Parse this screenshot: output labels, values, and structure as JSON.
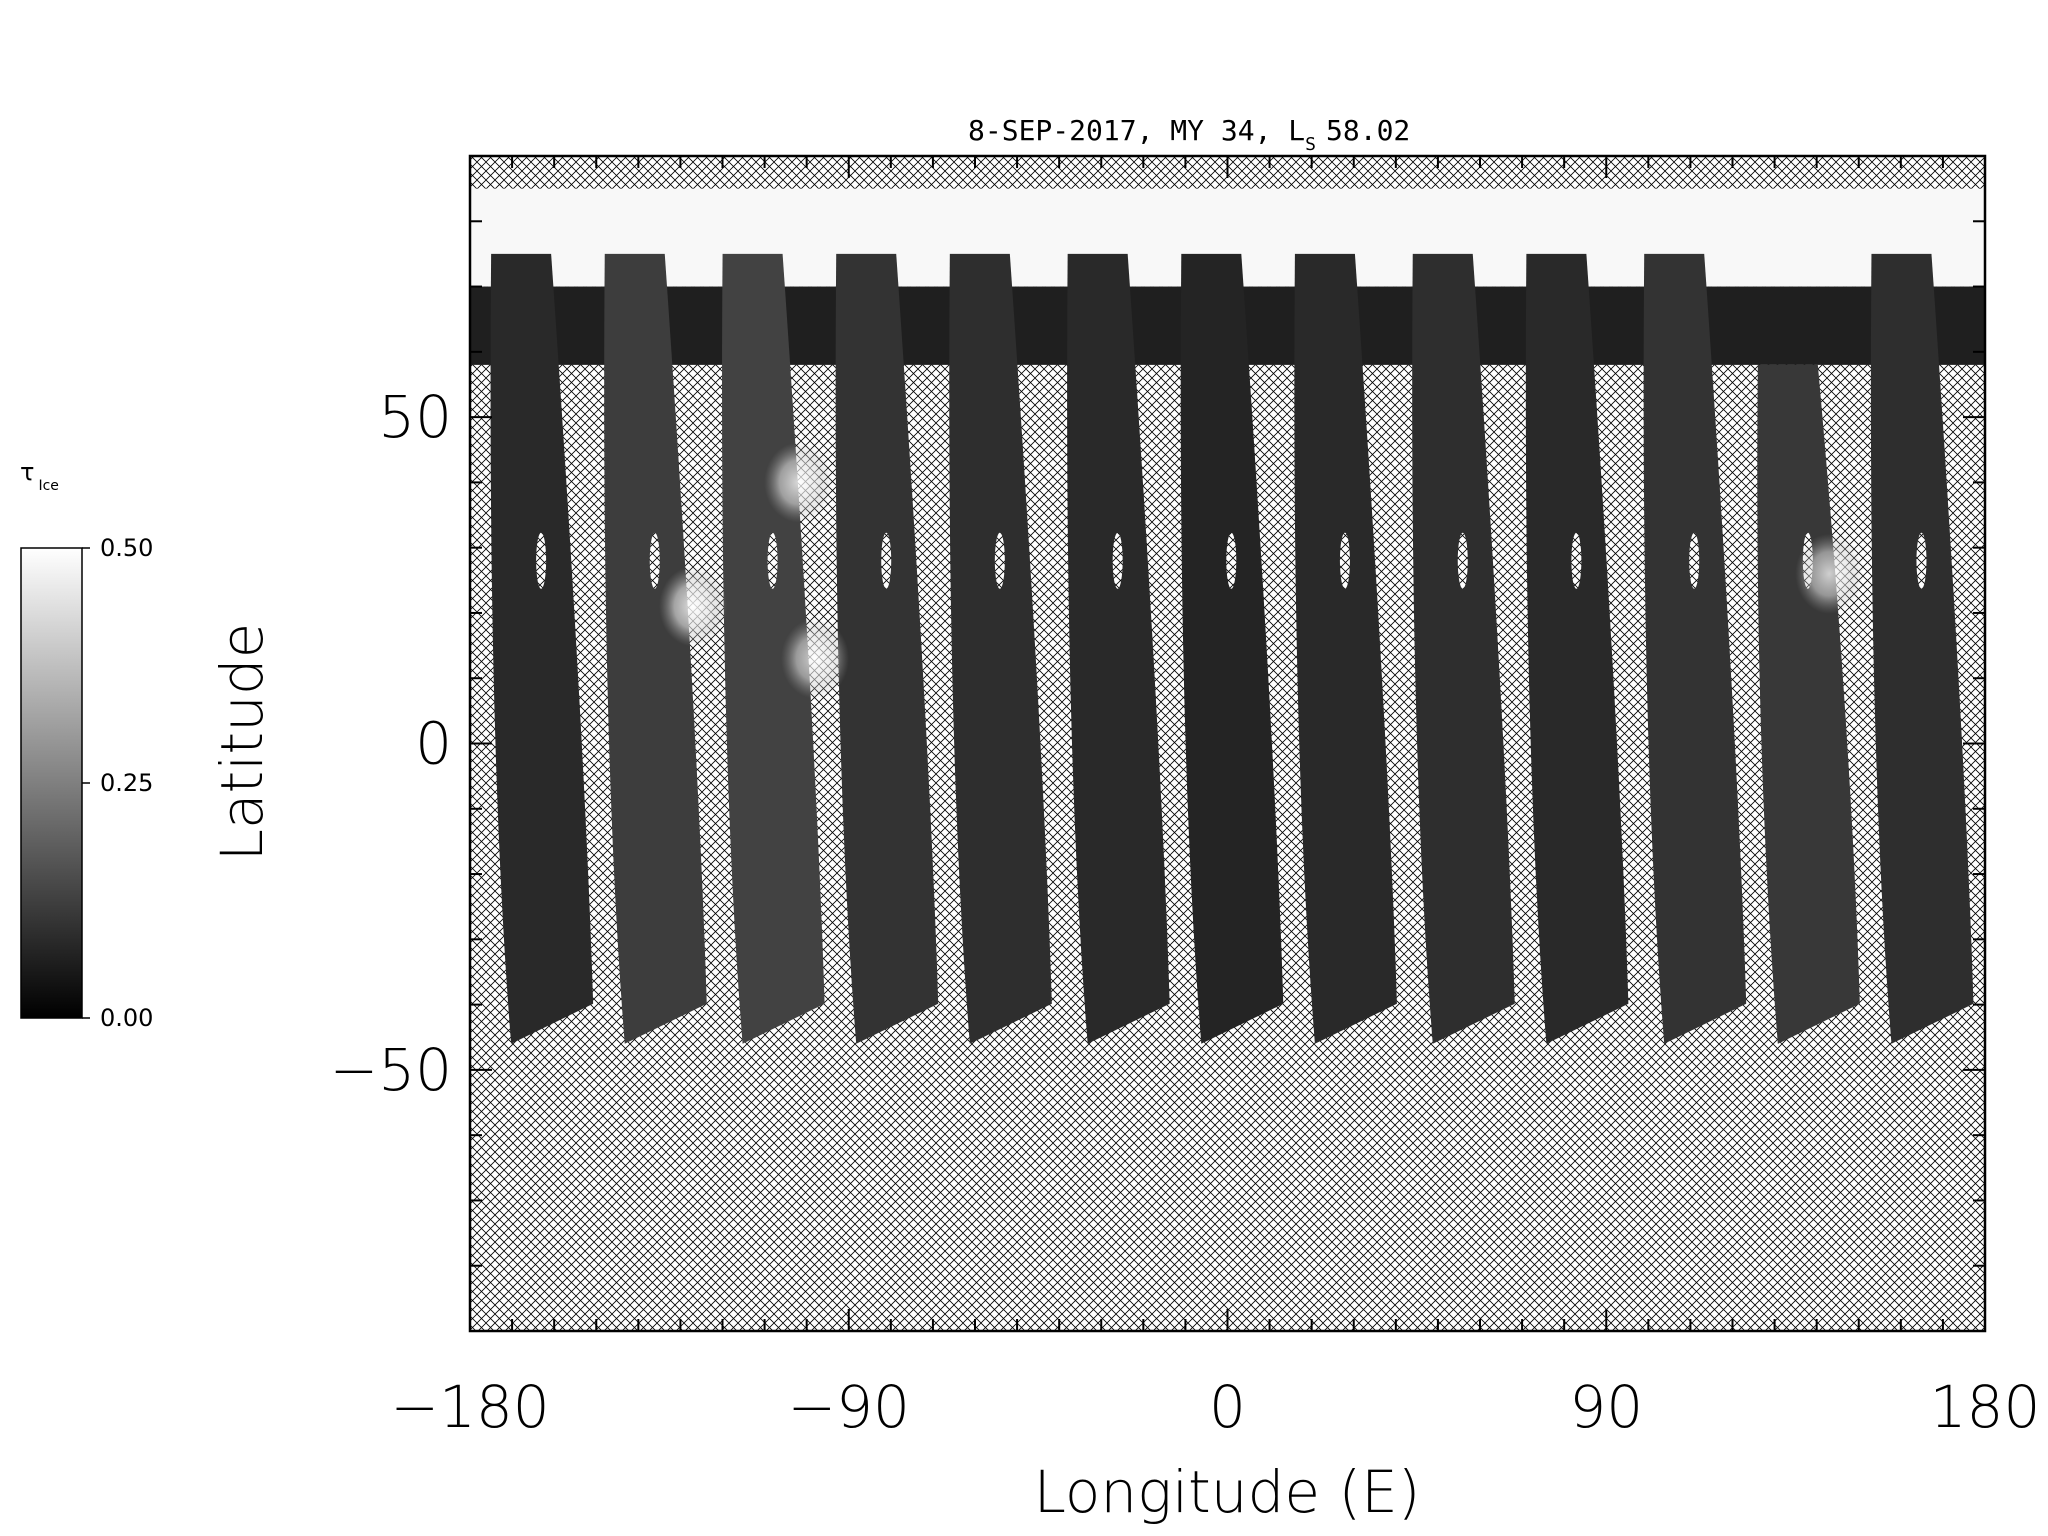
{
  "chart_data": {
    "type": "heatmap",
    "title": "8-SEP-2017, MY 34,  L",
    "title_subscript": "S",
    "title_value": "58.02",
    "xlabel": "Longitude (E)",
    "ylabel": "Latitude",
    "xlim": [
      -180,
      180
    ],
    "ylim": [
      -90,
      90
    ],
    "x_ticks": [
      -180,
      -90,
      0,
      90,
      180
    ],
    "x_tick_labels": [
      "−180",
      "−90",
      "0",
      "90",
      "180"
    ],
    "y_ticks": [
      -50,
      0,
      50
    ],
    "y_tick_labels": [
      "−50",
      "0",
      "50"
    ],
    "colorbar": {
      "label": "τ",
      "label_subscript": "Ice",
      "min": 0.0,
      "max": 0.5,
      "ticks": [
        0.0,
        0.25,
        0.5
      ],
      "tick_labels": [
        "0.00",
        "0.25",
        "0.50"
      ],
      "colormap": "grayscale"
    },
    "no_data_pattern": "crosshatch",
    "polar_cap": {
      "lat_min": 70,
      "lat_max": 85,
      "value": 0.5
    },
    "swaths": [
      {
        "lon": -165,
        "lat_min": -46,
        "lat_max": 75,
        "mean_value": 0.08
      },
      {
        "lon": -138,
        "lat_min": -46,
        "lat_max": 75,
        "mean_value": 0.12
      },
      {
        "lon": -110,
        "lat_min": -46,
        "lat_max": 75,
        "mean_value": 0.13
      },
      {
        "lon": -83,
        "lat_min": -46,
        "lat_max": 75,
        "mean_value": 0.1
      },
      {
        "lon": -56,
        "lat_min": -46,
        "lat_max": 75,
        "mean_value": 0.09
      },
      {
        "lon": -28,
        "lat_min": -46,
        "lat_max": 75,
        "mean_value": 0.08
      },
      {
        "lon": -1,
        "lat_min": -46,
        "lat_max": 75,
        "mean_value": 0.07
      },
      {
        "lon": 26,
        "lat_min": -46,
        "lat_max": 75,
        "mean_value": 0.08
      },
      {
        "lon": 54,
        "lat_min": -46,
        "lat_max": 75,
        "mean_value": 0.09
      },
      {
        "lon": 81,
        "lat_min": -46,
        "lat_max": 75,
        "mean_value": 0.08
      },
      {
        "lon": 109,
        "lat_min": -46,
        "lat_max": 75,
        "mean_value": 0.1
      },
      {
        "lon": 136,
        "lat_min": -46,
        "lat_max": 58,
        "mean_value": 0.11
      },
      {
        "lon": 163,
        "lat_min": -46,
        "lat_max": 75,
        "mean_value": 0.09
      }
    ],
    "cloud_features": [
      {
        "lon": -127,
        "lat": 21,
        "value": 0.45
      },
      {
        "lon": -102,
        "lat": 40,
        "value": 0.42
      },
      {
        "lon": -98,
        "lat": 13,
        "value": 0.4
      },
      {
        "lon": 143,
        "lat": 26,
        "value": 0.4
      }
    ]
  }
}
